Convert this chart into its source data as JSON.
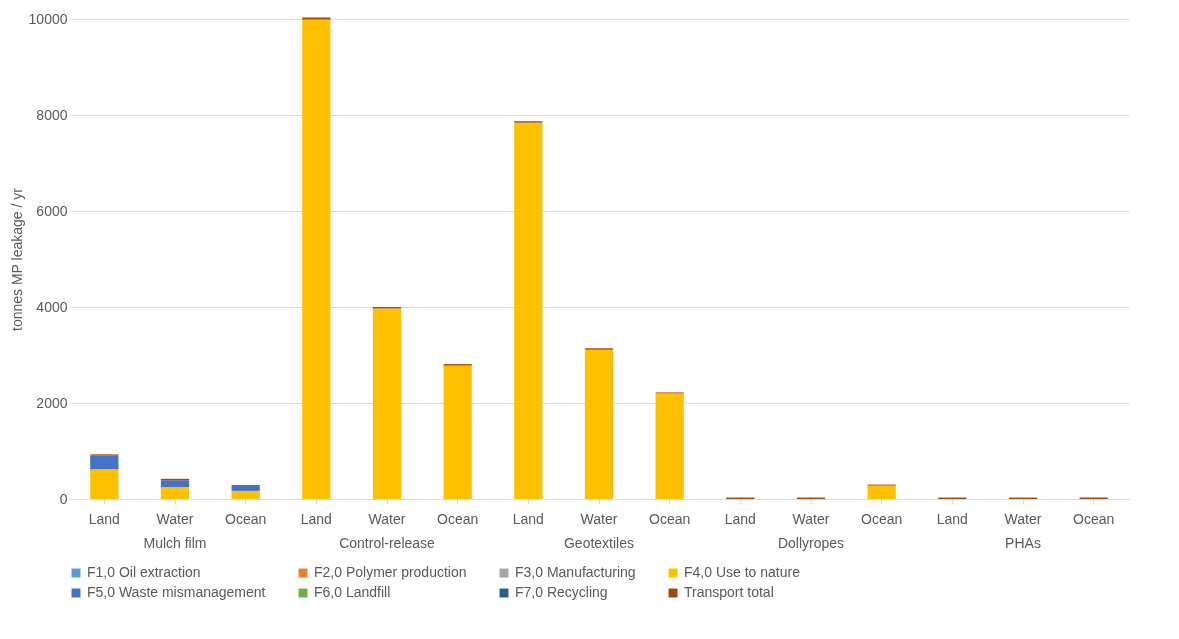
{
  "chart_data": {
    "type": "bar",
    "stacked": true,
    "ylabel": "tonnes MP leakage / yr",
    "categories": [
      "Land",
      "Water",
      "Ocean",
      "Land",
      "Water",
      "Ocean",
      "Land",
      "Water",
      "Ocean",
      "Land",
      "Water",
      "Ocean",
      "Land",
      "Water",
      "Ocean"
    ],
    "annotations": [
      "Mulch film",
      "Control-release",
      "Geotextiles",
      "Dollyropes",
      "PHAs"
    ],
    "ylim": [
      0,
      10000
    ],
    "yticks": [
      0,
      2000,
      4000,
      6000,
      8000,
      10000
    ],
    "grid": "y",
    "legend": "bottom",
    "series": [
      {
        "name": "F1,0 Oil extraction",
        "color": "#5b9bd5",
        "values": [
          0,
          0,
          0,
          0,
          0,
          0,
          0,
          0,
          0,
          0,
          0,
          0,
          0,
          0,
          0
        ]
      },
      {
        "name": "F2,0 Polymer production",
        "color": "#ed7d31",
        "values": [
          0,
          0,
          0,
          0,
          0,
          0,
          0,
          0,
          0,
          0,
          0,
          0,
          0,
          0,
          0
        ]
      },
      {
        "name": "F3,0 Manufacturing",
        "color": "#a5a5a5",
        "values": [
          0,
          0,
          0,
          0,
          0,
          0,
          0,
          0,
          0,
          0,
          0,
          0,
          0,
          0,
          0
        ]
      },
      {
        "name": "F4,0 Use to nature",
        "color": "#ffc000",
        "values": [
          620,
          250,
          170,
          9990,
          3970,
          2780,
          7840,
          3110,
          2200,
          0,
          0,
          280,
          0,
          0,
          0
        ]
      },
      {
        "name": "F5,0 Waste mismanagement",
        "color": "#4472c4",
        "values": [
          290,
          140,
          100,
          0,
          0,
          0,
          0,
          0,
          0,
          0,
          0,
          0,
          0,
          0,
          0
        ]
      },
      {
        "name": "F6,0 Landfill",
        "color": "#70ad47",
        "values": [
          0,
          0,
          0,
          0,
          0,
          0,
          0,
          0,
          0,
          0,
          0,
          0,
          0,
          0,
          0
        ]
      },
      {
        "name": "F7,0 Recycling",
        "color": "#255e91",
        "values": [
          0,
          0,
          0,
          0,
          0,
          0,
          0,
          0,
          0,
          0,
          0,
          0,
          0,
          0,
          0
        ]
      },
      {
        "name": "Transport total",
        "color": "#9e480e",
        "values": [
          20,
          30,
          20,
          40,
          30,
          30,
          30,
          30,
          20,
          30,
          30,
          20,
          30,
          30,
          30
        ]
      }
    ]
  }
}
